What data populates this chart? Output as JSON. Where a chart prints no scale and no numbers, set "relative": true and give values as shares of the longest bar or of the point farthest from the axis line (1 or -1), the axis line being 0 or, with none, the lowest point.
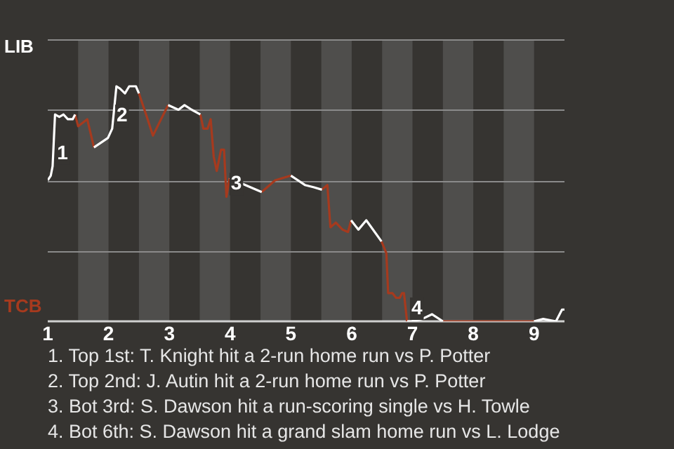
{
  "chart_data": {
    "type": "line",
    "relative": true,
    "x": [
      1.0,
      1.05,
      1.08,
      1.12,
      1.19,
      1.26,
      1.33,
      1.41,
      1.45,
      1.5,
      1.65,
      1.76,
      1.99,
      2.06,
      2.13,
      2.19,
      2.27,
      2.34,
      2.45,
      2.5,
      2.63,
      2.73,
      2.98,
      3.15,
      3.25,
      3.37,
      3.51,
      3.56,
      3.63,
      3.68,
      3.73,
      3.78,
      3.85,
      3.9,
      3.94,
      3.99,
      4.25,
      4.52,
      4.74,
      5.0,
      5.23,
      5.38,
      5.51,
      5.6,
      5.65,
      5.74,
      5.85,
      5.94,
      5.99,
      6.11,
      6.24,
      6.49,
      6.57,
      6.6,
      6.67,
      6.73,
      6.79,
      6.83,
      6.86,
      6.91,
      6.98,
      7.16,
      7.32,
      7.5,
      7.97,
      8.5,
      9.0,
      9.15,
      9.36,
      9.46,
      9.5
    ],
    "series": [
      {
        "name": "LIB",
        "color": "#ffffff",
        "values": [
          0.6,
          0.62,
          0.66,
          0.88,
          0.87,
          0.88,
          0.86,
          0.86,
          0.88,
          null,
          null,
          0.74,
          0.78,
          0.82,
          1,
          0.99,
          0.97,
          1,
          1,
          0.97,
          null,
          null,
          0.92,
          0.9,
          0.92,
          0.9,
          0.88,
          null,
          null,
          null,
          null,
          null,
          null,
          null,
          null,
          0.61,
          0.58,
          0.55,
          null,
          0.62,
          0.58,
          0.57,
          0.56,
          null,
          null,
          null,
          null,
          null,
          0.43,
          0.39,
          0.43,
          0.34,
          null,
          null,
          null,
          null,
          null,
          null,
          null,
          0,
          0,
          0.01,
          0.03,
          0,
          null,
          null,
          0,
          0.01,
          0,
          0.05,
          0.05
        ]
      },
      {
        "name": "TCB",
        "color": "#a63a1e",
        "values": [
          null,
          null,
          null,
          null,
          null,
          null,
          null,
          null,
          0.88,
          0.83,
          0.86,
          0.74,
          null,
          null,
          null,
          null,
          null,
          null,
          null,
          0.97,
          0.87,
          0.79,
          0.92,
          null,
          null,
          null,
          0.88,
          0.82,
          0.82,
          0.86,
          0.7,
          0.64,
          0.73,
          0.73,
          0.53,
          0.61,
          null,
          0.55,
          0.6,
          0.62,
          null,
          null,
          0.56,
          0.58,
          0.4,
          0.42,
          0.39,
          0.38,
          0.43,
          null,
          null,
          0.34,
          0.29,
          0.12,
          0.12,
          0.1,
          0.1,
          0.12,
          0.12,
          0,
          null,
          null,
          null,
          0,
          0,
          0,
          0,
          null,
          null,
          null,
          null
        ]
      }
    ],
    "xlim": [
      1,
      9.5
    ],
    "xticks": [
      1,
      2,
      3,
      4,
      5,
      6,
      7,
      8,
      9
    ],
    "grid": "y",
    "legend": false,
    "marker": "none",
    "line_style": "solid",
    "bands": [
      {
        "axis": "x",
        "from": 1.5,
        "to": 2,
        "color": "#4f4e4c"
      },
      {
        "axis": "x",
        "from": 2.5,
        "to": 3,
        "color": "#4f4e4c"
      },
      {
        "axis": "x",
        "from": 3.5,
        "to": 4,
        "color": "#4f4e4c"
      },
      {
        "axis": "x",
        "from": 4.5,
        "to": 5,
        "color": "#4f4e4c"
      },
      {
        "axis": "x",
        "from": 5.5,
        "to": 6,
        "color": "#4f4e4c"
      },
      {
        "axis": "x",
        "from": 6.5,
        "to": 7,
        "color": "#4f4e4c"
      },
      {
        "axis": "x",
        "from": 7.5,
        "to": 8,
        "color": "#4f4e4c"
      },
      {
        "axis": "x",
        "from": 8.5,
        "to": 9,
        "color": "#4f4e4c"
      }
    ],
    "annotations": [
      {
        "text": "1",
        "x": 1.08,
        "y": 0.66
      },
      {
        "text": "2",
        "x": 2.06,
        "y": 0.82
      },
      {
        "text": "3",
        "x": 3.94,
        "y": 0.53
      },
      {
        "text": "4",
        "x": 6.91,
        "y": 0
      },
      "1. Top 1st: T. Knight hit a 2-run home run vs P. Potter",
      "2. Top 2nd: J. Autin hit a 2-run home run vs P. Potter",
      "3. Bot 3rd: S. Dawson hit a run-scoring single vs H. Towle",
      "4. Bot 6th: S. Dawson hit a grand slam home run vs L. Lodge"
    ]
  }
}
